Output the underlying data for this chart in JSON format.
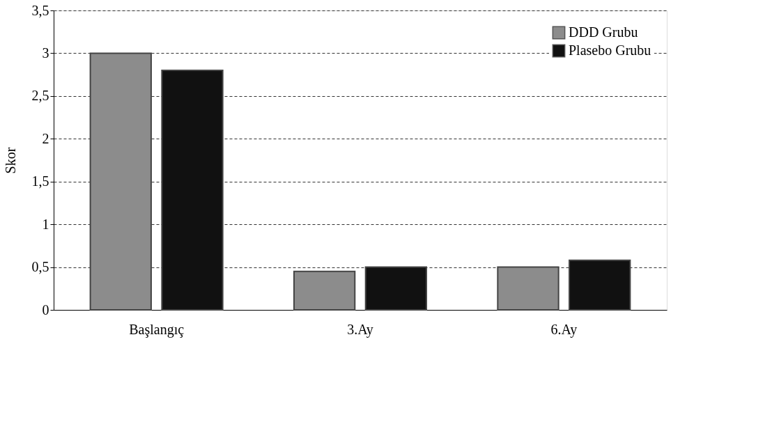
{
  "chart_data": {
    "type": "bar",
    "ylabel": "Skor",
    "categories": [
      "Başlangıç",
      "3.Ay",
      "6.Ay"
    ],
    "series": [
      {
        "name": "DDD Grubu",
        "color": "#8c8c8c",
        "values": [
          3.0,
          0.45,
          0.5
        ]
      },
      {
        "name": "Plasebo Grubu",
        "color": "#111111",
        "values": [
          2.8,
          0.5,
          0.58
        ]
      }
    ],
    "ylim": [
      0,
      3.5
    ],
    "yticks": [
      0,
      {
        "value": 0.5,
        "label": "0,5"
      },
      1,
      {
        "value": 1.5,
        "label": "1,5"
      },
      2,
      {
        "value": 2.5,
        "label": "2,5"
      },
      3,
      {
        "value": 3.5,
        "label": "3,5"
      }
    ],
    "grid": "y",
    "legend": "top right"
  }
}
